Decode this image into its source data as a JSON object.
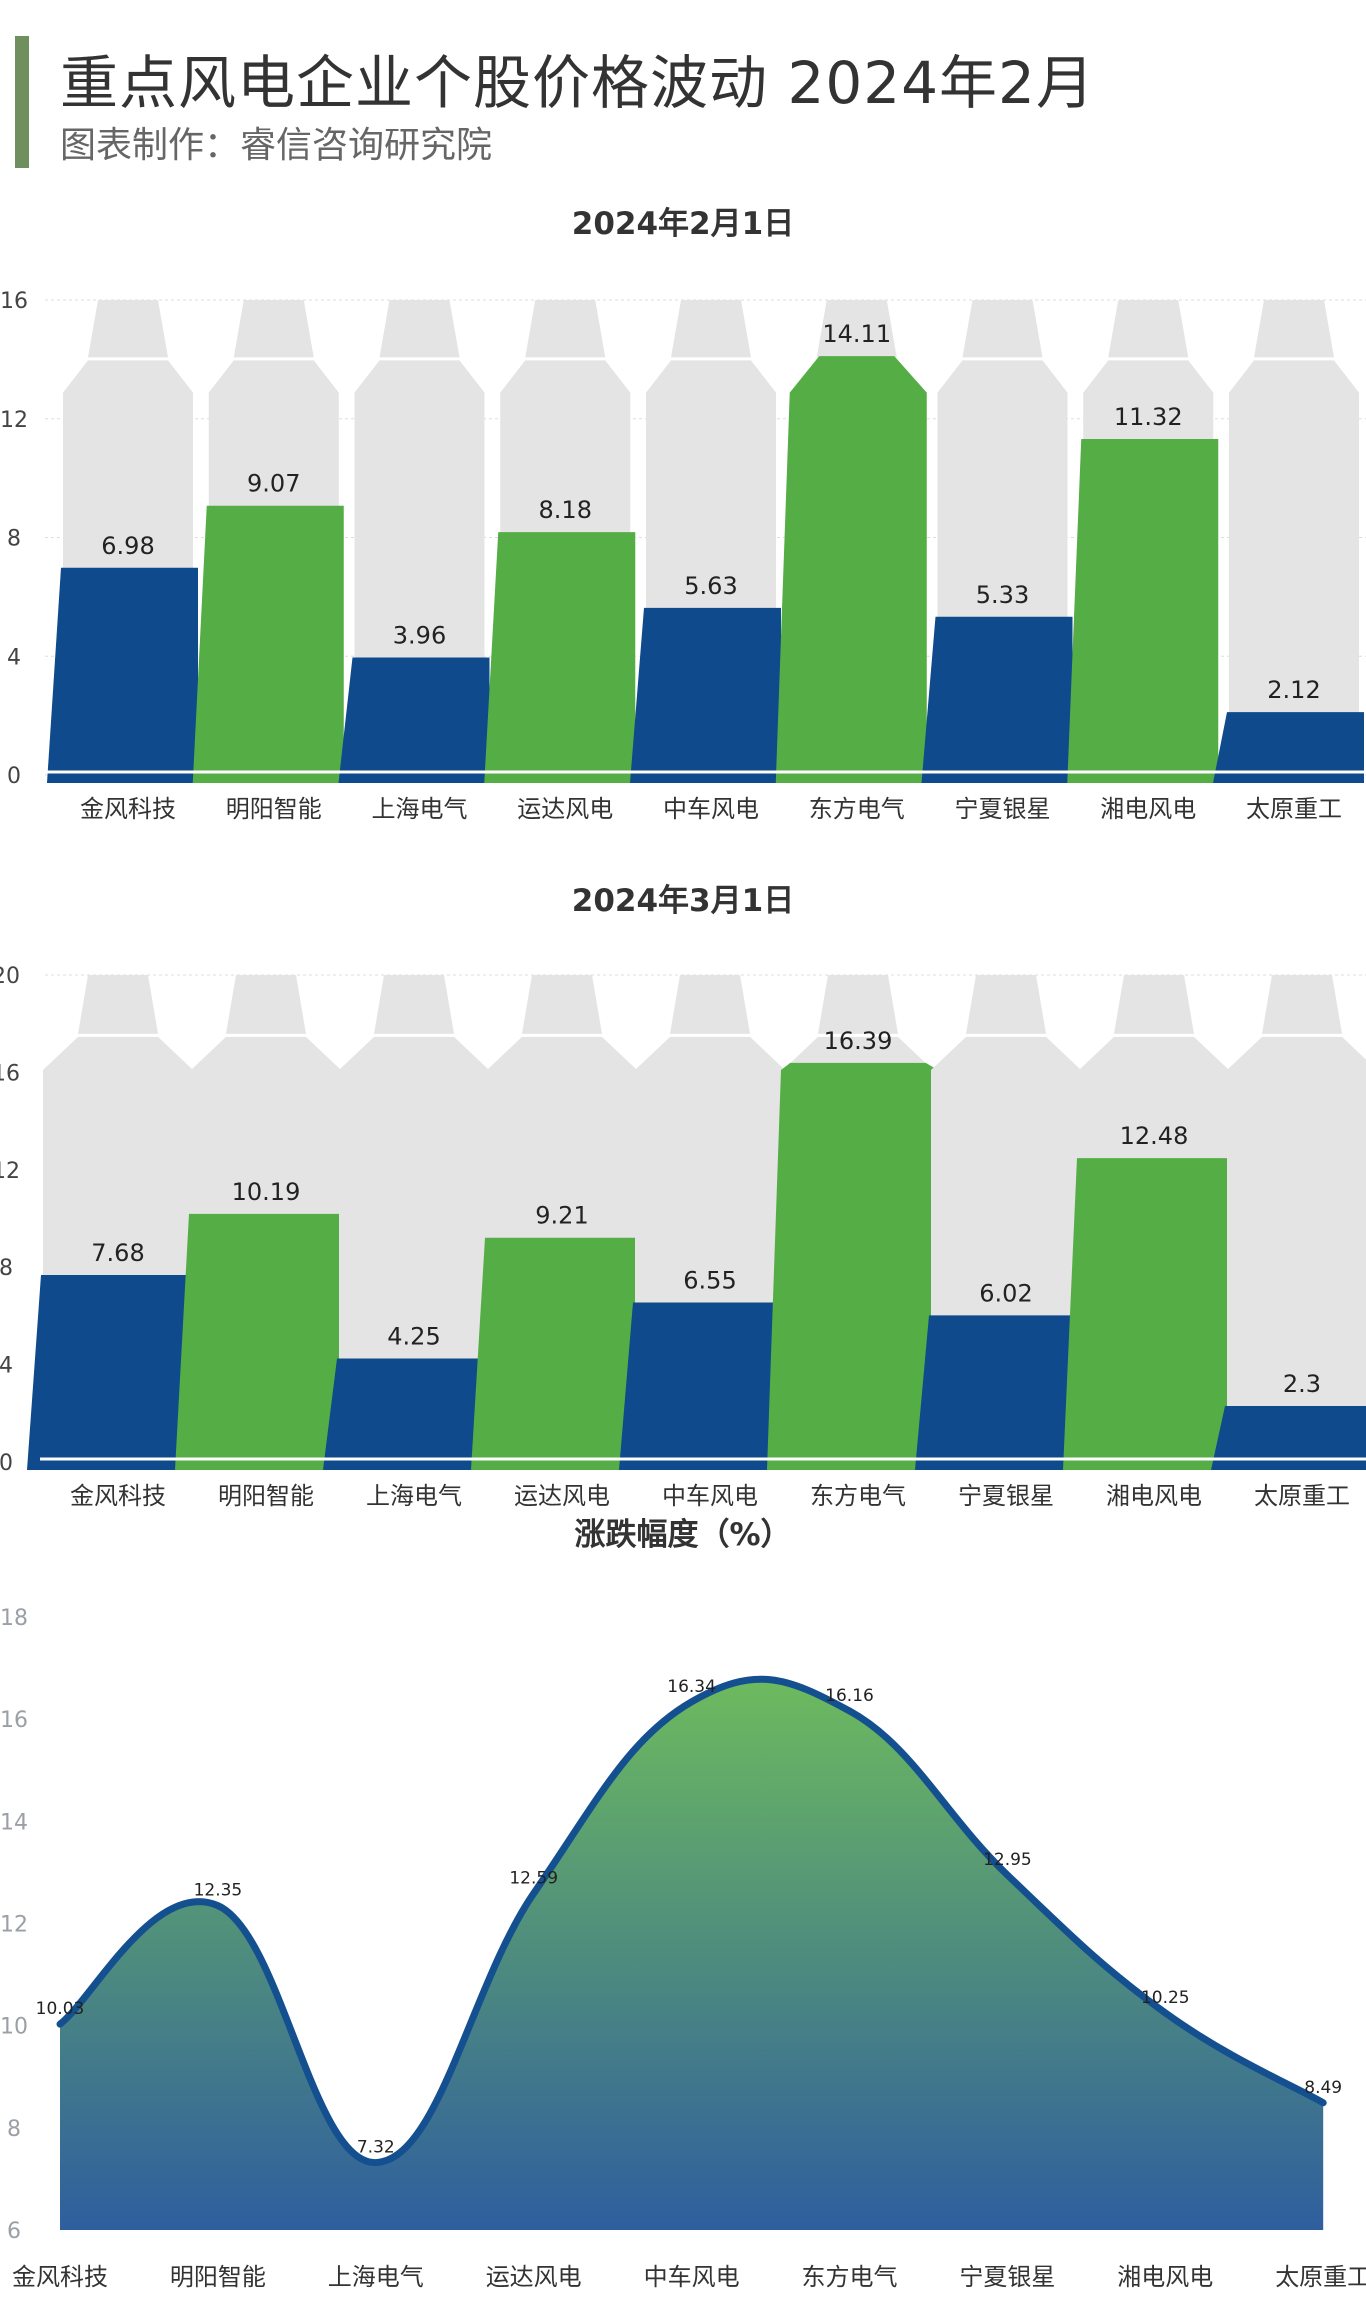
{
  "header": {
    "title": "重点风电企业个股价格波动 2024年2月",
    "subtitle": "图表制作：睿信咨询研究院",
    "accent_color": "#6f8f5f"
  },
  "chart_data": [
    {
      "type": "bar",
      "title": "2024年2月1日",
      "categories": [
        "金风科技",
        "明阳智能",
        "上海电气",
        "运达风电",
        "中车风电",
        "东方电气",
        "宁夏银星",
        "湘电风电",
        "太原重工"
      ],
      "values": [
        6.98,
        9.07,
        3.96,
        8.18,
        5.63,
        14.11,
        5.33,
        11.32,
        2.12
      ],
      "colors": [
        "#0f4a8c",
        "#55ae45",
        "#0f4a8c",
        "#55ae45",
        "#0f4a8c",
        "#55ae45",
        "#0f4a8c",
        "#55ae45",
        "#0f4a8c"
      ],
      "ylim": [
        0,
        16
      ],
      "yticks": [
        0,
        4,
        8,
        12,
        16
      ],
      "grid": true
    },
    {
      "type": "bar",
      "title": "2024年3月1日",
      "categories": [
        "金风科技",
        "明阳智能",
        "上海电气",
        "运达风电",
        "中车风电",
        "东方电气",
        "宁夏银星",
        "湘电风电",
        "太原重工"
      ],
      "values": [
        7.68,
        10.19,
        4.25,
        9.21,
        6.55,
        16.39,
        6.02,
        12.48,
        2.3
      ],
      "colors": [
        "#0f4a8c",
        "#55ae45",
        "#0f4a8c",
        "#55ae45",
        "#0f4a8c",
        "#55ae45",
        "#0f4a8c",
        "#55ae45",
        "#0f4a8c"
      ],
      "ylim": [
        0,
        20
      ],
      "yticks": [
        0,
        4,
        8,
        12,
        16,
        20
      ],
      "grid": true
    },
    {
      "type": "area",
      "title": "涨跌幅度（%）",
      "categories": [
        "金风科技",
        "明阳智能",
        "上海电气",
        "运达风电",
        "中车风电",
        "东方电气",
        "宁夏银星",
        "湘电风电",
        "太原重工"
      ],
      "values": [
        10.03,
        12.35,
        7.32,
        12.59,
        16.34,
        16.16,
        12.95,
        10.25,
        8.49
      ],
      "ylim": [
        6,
        18
      ],
      "yticks": [
        6,
        8,
        10,
        12,
        14,
        16,
        18
      ],
      "grid": false,
      "gradient": [
        "#6dba5e",
        "#2f5e9e"
      ]
    }
  ]
}
